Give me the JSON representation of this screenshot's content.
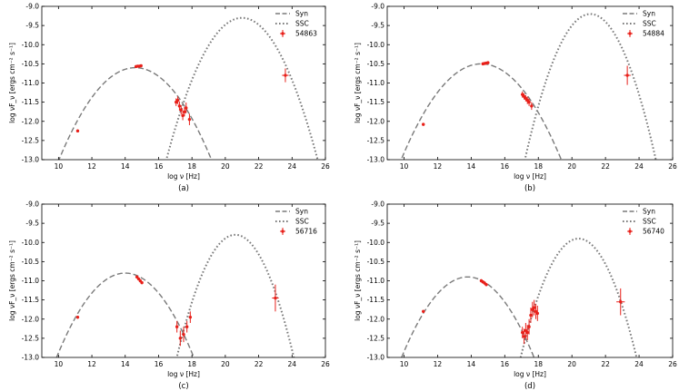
{
  "colors": {
    "syn": "#7a7a7a",
    "ssc": "#7a7a7a",
    "data": "#e8201a",
    "axes": "#000000",
    "background": "#ffffff"
  },
  "chart_data": [
    {
      "type": "line",
      "caption": "(a)",
      "xlabel": "log ν [Hz]",
      "ylabel": "log νF_ν [ergs cm⁻² s⁻¹]",
      "xlim": [
        9,
        26
      ],
      "ylim": [
        -13.0,
        -9.0
      ],
      "xticks": [
        "10",
        "12",
        "14",
        "16",
        "18",
        "20",
        "22",
        "24",
        "26"
      ],
      "yticks": [
        "-13.0",
        "-12.5",
        "-12.0",
        "-11.5",
        "-11.0",
        "-10.5",
        "-10.0",
        "-9.5",
        "-9.0"
      ],
      "legend": [
        "Syn",
        "SSC",
        "54863"
      ],
      "series": [
        {
          "name": "Syn",
          "style": "dashed",
          "peak_x": 14.6,
          "peak_y": -10.6,
          "curvature": 0.115
        },
        {
          "name": "SSC",
          "style": "dotted",
          "peak_x": 21.0,
          "peak_y": -9.3,
          "curvature": 0.18
        }
      ],
      "data_points": [
        {
          "x": 11.15,
          "y": -12.25,
          "yerr": 0.04
        },
        {
          "x": 14.65,
          "y": -10.57,
          "yerr": 0.03
        },
        {
          "x": 14.75,
          "y": -10.56,
          "yerr": 0.03
        },
        {
          "x": 14.85,
          "y": -10.56,
          "yerr": 0.03
        },
        {
          "x": 14.95,
          "y": -10.55,
          "yerr": 0.03
        },
        {
          "x": 17.05,
          "y": -11.5,
          "yerr": 0.1
        },
        {
          "x": 17.15,
          "y": -11.45,
          "yerr": 0.1
        },
        {
          "x": 17.25,
          "y": -11.6,
          "yerr": 0.12
        },
        {
          "x": 17.35,
          "y": -11.7,
          "yerr": 0.12
        },
        {
          "x": 17.45,
          "y": -11.85,
          "yerr": 0.12
        },
        {
          "x": 17.55,
          "y": -11.75,
          "yerr": 0.12
        },
        {
          "x": 17.65,
          "y": -11.65,
          "yerr": 0.14
        },
        {
          "x": 17.85,
          "y": -11.95,
          "yerr": 0.15
        },
        {
          "x": 23.6,
          "y": -10.8,
          "yerr": 0.18,
          "xerr": 0.2
        }
      ]
    },
    {
      "type": "line",
      "caption": "(b)",
      "xlabel": "log ν [Hz]",
      "ylabel": "log νF_ν [ergs cm⁻² s⁻¹]",
      "xlim": [
        9,
        26
      ],
      "ylim": [
        -13.0,
        -9.0
      ],
      "xticks": [
        "10",
        "12",
        "14",
        "16",
        "18",
        "20",
        "22",
        "24",
        "26"
      ],
      "yticks": [
        "-13.0",
        "-12.5",
        "-12.0",
        "-11.5",
        "-11.0",
        "-10.5",
        "-10.0",
        "-9.5",
        "-9.0"
      ],
      "legend": [
        "Syn",
        "SSC",
        "54884"
      ],
      "series": [
        {
          "name": "Syn",
          "style": "dashed",
          "peak_x": 14.6,
          "peak_y": -10.5,
          "curvature": 0.11
        },
        {
          "name": "SSC",
          "style": "dotted",
          "peak_x": 21.1,
          "peak_y": -9.2,
          "curvature": 0.25
        }
      ],
      "data_points": [
        {
          "x": 11.15,
          "y": -12.08,
          "yerr": 0.03
        },
        {
          "x": 14.7,
          "y": -10.5,
          "yerr": 0.03
        },
        {
          "x": 14.8,
          "y": -10.49,
          "yerr": 0.03
        },
        {
          "x": 14.9,
          "y": -10.48,
          "yerr": 0.03
        },
        {
          "x": 15.0,
          "y": -10.47,
          "yerr": 0.03
        },
        {
          "x": 17.05,
          "y": -11.3,
          "yerr": 0.08
        },
        {
          "x": 17.15,
          "y": -11.35,
          "yerr": 0.08
        },
        {
          "x": 17.25,
          "y": -11.4,
          "yerr": 0.08
        },
        {
          "x": 17.35,
          "y": -11.45,
          "yerr": 0.1
        },
        {
          "x": 17.45,
          "y": -11.5,
          "yerr": 0.1
        },
        {
          "x": 17.6,
          "y": -11.6,
          "yerr": 0.1
        },
        {
          "x": 23.3,
          "y": -10.8,
          "yerr": 0.25,
          "xerr": 0.2
        }
      ]
    },
    {
      "type": "line",
      "caption": "(c)",
      "xlabel": "log ν [Hz]",
      "ylabel": "log νF_ν [ergs cm⁻² s⁻¹]",
      "xlim": [
        9,
        26
      ],
      "ylim": [
        -13.0,
        -9.0
      ],
      "xticks": [
        "10",
        "12",
        "14",
        "16",
        "18",
        "20",
        "22",
        "24",
        "26"
      ],
      "yticks": [
        "-13.0",
        "-12.5",
        "-12.0",
        "-11.5",
        "-11.0",
        "-10.5",
        "-10.0",
        "-9.5",
        "-9.0"
      ],
      "legend": [
        "Syn",
        "SSC",
        "56716"
      ],
      "series": [
        {
          "name": "Syn",
          "style": "dashed",
          "peak_x": 14.0,
          "peak_y": -10.8,
          "curvature": 0.13
        },
        {
          "name": "SSC",
          "style": "dotted",
          "peak_x": 20.6,
          "peak_y": -9.8,
          "curvature": 0.26
        }
      ],
      "data_points": [
        {
          "x": 11.15,
          "y": -11.95,
          "yerr": 0.04
        },
        {
          "x": 14.7,
          "y": -10.9,
          "yerr": 0.04
        },
        {
          "x": 14.8,
          "y": -10.95,
          "yerr": 0.04
        },
        {
          "x": 14.9,
          "y": -11.0,
          "yerr": 0.04
        },
        {
          "x": 15.0,
          "y": -11.05,
          "yerr": 0.04
        },
        {
          "x": 17.1,
          "y": -12.2,
          "yerr": 0.15
        },
        {
          "x": 17.3,
          "y": -12.5,
          "yerr": 0.2
        },
        {
          "x": 17.5,
          "y": -12.4,
          "yerr": 0.2
        },
        {
          "x": 17.7,
          "y": -12.2,
          "yerr": 0.15
        },
        {
          "x": 17.9,
          "y": -11.95,
          "yerr": 0.15
        },
        {
          "x": 23.0,
          "y": -11.45,
          "yerr": 0.35,
          "xerr": 0.2
        }
      ]
    },
    {
      "type": "line",
      "caption": "(d)",
      "xlabel": "log ν [Hz]",
      "ylabel": "log νF_ν [ergs cm⁻² s⁻¹]",
      "xlim": [
        9,
        26
      ],
      "ylim": [
        -13.0,
        -9.0
      ],
      "xticks": [
        "10",
        "12",
        "14",
        "16",
        "18",
        "20",
        "22",
        "24",
        "26"
      ],
      "yticks": [
        "-13.0",
        "-12.5",
        "-12.0",
        "-11.5",
        "-11.0",
        "-10.5",
        "-10.0",
        "-9.5",
        "-9.0"
      ],
      "legend": [
        "Syn",
        "SSC",
        "56740"
      ],
      "series": [
        {
          "name": "Syn",
          "style": "dashed",
          "peak_x": 13.8,
          "peak_y": -10.9,
          "curvature": 0.135
        },
        {
          "name": "SSC",
          "style": "dotted",
          "peak_x": 20.4,
          "peak_y": -9.9,
          "curvature": 0.26
        }
      ],
      "data_points": [
        {
          "x": 11.15,
          "y": -11.8,
          "yerr": 0.04
        },
        {
          "x": 14.6,
          "y": -11.0,
          "yerr": 0.04
        },
        {
          "x": 14.7,
          "y": -11.03,
          "yerr": 0.04
        },
        {
          "x": 14.8,
          "y": -11.06,
          "yerr": 0.04
        },
        {
          "x": 14.9,
          "y": -11.1,
          "yerr": 0.04
        },
        {
          "x": 17.05,
          "y": -12.35,
          "yerr": 0.15
        },
        {
          "x": 17.15,
          "y": -12.45,
          "yerr": 0.2
        },
        {
          "x": 17.25,
          "y": -12.3,
          "yerr": 0.2
        },
        {
          "x": 17.35,
          "y": -12.35,
          "yerr": 0.2
        },
        {
          "x": 17.45,
          "y": -12.2,
          "yerr": 0.2
        },
        {
          "x": 17.55,
          "y": -11.9,
          "yerr": 0.2
        },
        {
          "x": 17.65,
          "y": -11.75,
          "yerr": 0.2
        },
        {
          "x": 17.75,
          "y": -11.7,
          "yerr": 0.2
        },
        {
          "x": 17.85,
          "y": -11.8,
          "yerr": 0.2
        },
        {
          "x": 17.95,
          "y": -11.85,
          "yerr": 0.2
        },
        {
          "x": 22.9,
          "y": -11.55,
          "yerr": 0.35,
          "xerr": 0.25
        }
      ]
    }
  ]
}
